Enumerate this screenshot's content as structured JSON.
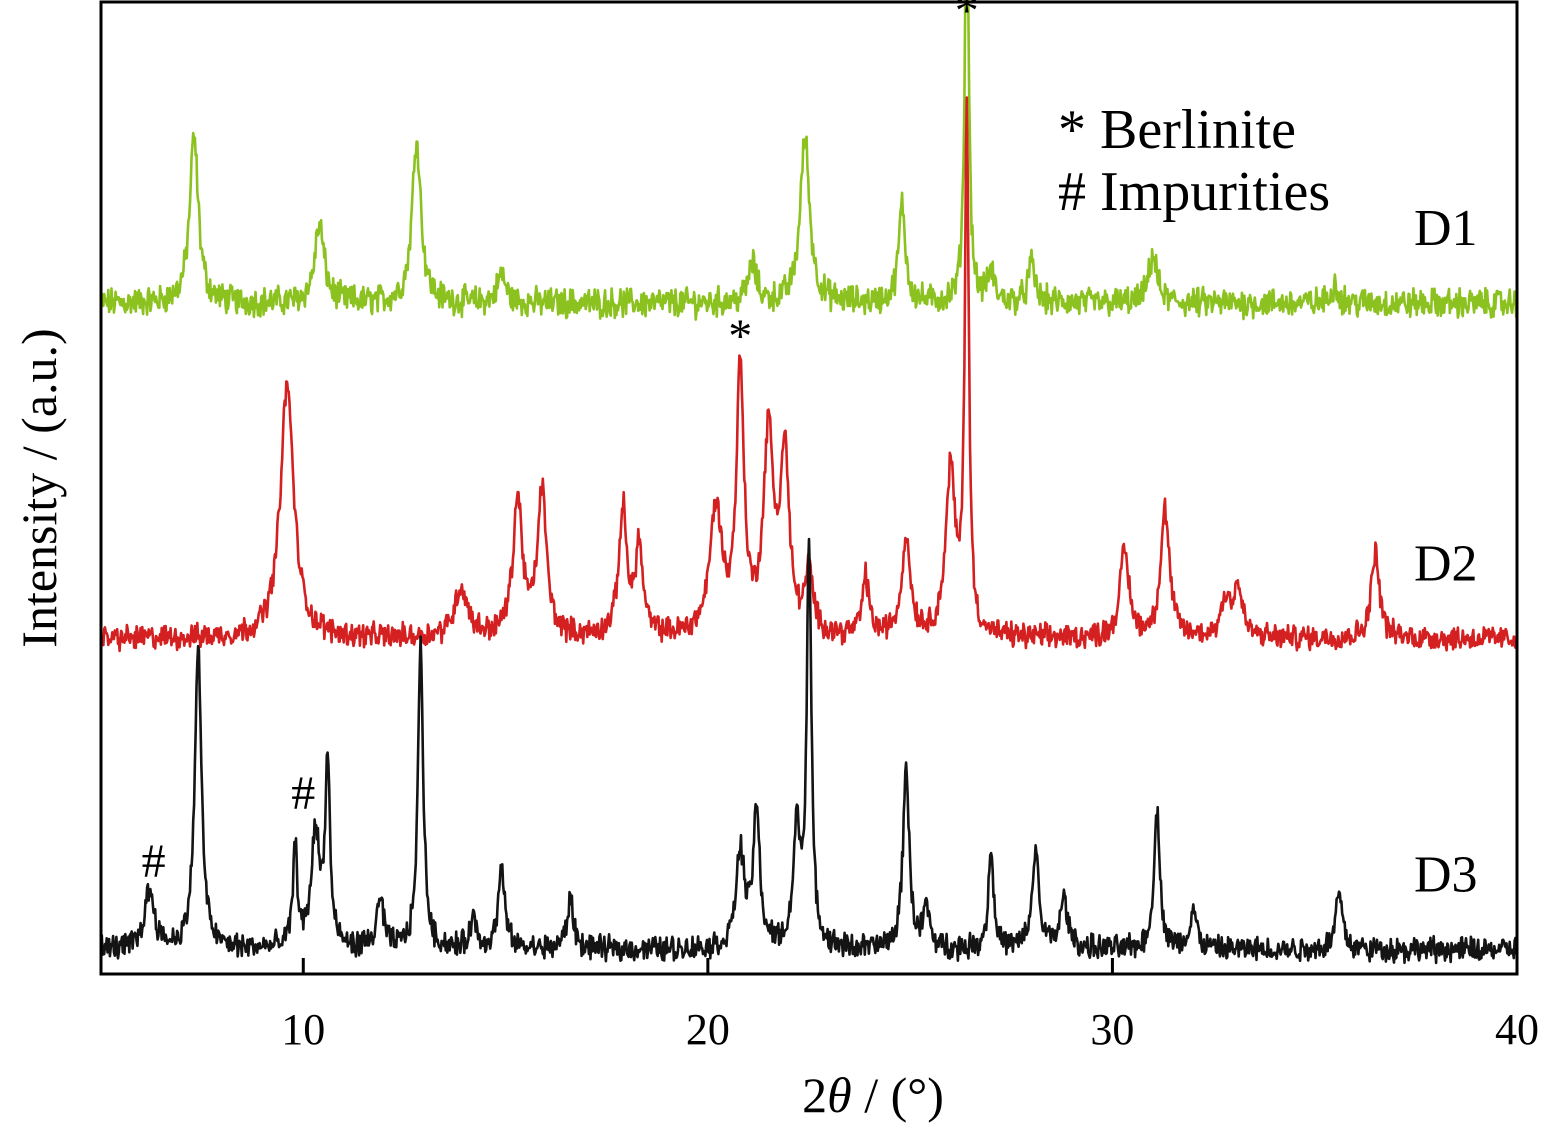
{
  "chart_data": {
    "type": "line",
    "title": "",
    "xlabel": "2θ / (°)",
    "xlabel_parts": {
      "var": "θ",
      "prefix": "2",
      "suffix": " / (°)"
    },
    "ylabel": "Intensity / (a.u.)",
    "xlim": [
      5,
      40
    ],
    "ylim": [
      0,
      100
    ],
    "x_ticks": [
      10,
      20,
      30,
      40
    ],
    "y_ticks_shown": false,
    "grid": false,
    "legend_position": "top-right",
    "legend": [
      {
        "symbol": "*",
        "label": "Berlinite"
      },
      {
        "symbol": "#",
        "label": "Impurities"
      }
    ],
    "series": [
      {
        "name": "D1",
        "color": "#8cc21f",
        "baseline": 69,
        "noise": 1.2,
        "peaks": [
          [
            7.3,
            17,
            0.13
          ],
          [
            10.4,
            8,
            0.14
          ],
          [
            12.8,
            17,
            0.13
          ],
          [
            14.9,
            3,
            0.12
          ],
          [
            21.1,
            4,
            0.12
          ],
          [
            22.4,
            17,
            0.14
          ],
          [
            24.8,
            10,
            0.1
          ],
          [
            26.4,
            43,
            0.06
          ],
          [
            27.0,
            3,
            0.1
          ],
          [
            28.0,
            4,
            0.1
          ],
          [
            31.0,
            5,
            0.12
          ],
          [
            35.5,
            2,
            0.1
          ]
        ]
      },
      {
        "name": "D2",
        "color": "#d42020",
        "baseline": 34.5,
        "noise": 1.0,
        "peaks": [
          [
            9.6,
            26,
            0.2
          ],
          [
            13.9,
            5,
            0.2
          ],
          [
            15.3,
            14,
            0.14
          ],
          [
            15.9,
            15,
            0.13
          ],
          [
            17.9,
            13,
            0.12
          ],
          [
            18.3,
            9,
            0.11
          ],
          [
            20.2,
            13,
            0.18
          ],
          [
            20.8,
            27,
            0.11
          ],
          [
            21.5,
            20,
            0.15
          ],
          [
            21.9,
            18,
            0.13
          ],
          [
            22.5,
            6,
            0.12
          ],
          [
            23.9,
            6,
            0.1
          ],
          [
            24.9,
            10,
            0.13
          ],
          [
            26.0,
            17,
            0.14
          ],
          [
            26.4,
            53,
            0.06
          ],
          [
            30.3,
            9,
            0.13
          ],
          [
            31.3,
            13,
            0.13
          ],
          [
            32.8,
            4,
            0.13
          ],
          [
            33.1,
            5,
            0.13
          ],
          [
            36.5,
            9,
            0.12
          ]
        ]
      },
      {
        "name": "D3",
        "color": "#141414",
        "baseline": 2.5,
        "noise": 1.0,
        "peaks": [
          [
            6.2,
            6,
            0.15
          ],
          [
            7.4,
            31,
            0.1
          ],
          [
            9.8,
            10,
            0.07
          ],
          [
            10.3,
            12,
            0.12
          ],
          [
            10.6,
            19,
            0.07
          ],
          [
            11.9,
            5,
            0.1
          ],
          [
            12.9,
            31,
            0.08
          ],
          [
            14.2,
            3,
            0.1
          ],
          [
            14.9,
            8,
            0.1
          ],
          [
            16.6,
            5,
            0.1
          ],
          [
            20.8,
            10,
            0.12
          ],
          [
            21.2,
            14,
            0.1
          ],
          [
            22.2,
            12,
            0.1
          ],
          [
            22.5,
            41,
            0.07
          ],
          [
            24.9,
            19,
            0.09
          ],
          [
            25.4,
            4,
            0.1
          ],
          [
            27.0,
            10,
            0.08
          ],
          [
            28.1,
            10,
            0.1
          ],
          [
            28.8,
            5,
            0.12
          ],
          [
            31.1,
            14,
            0.09
          ],
          [
            32.0,
            4,
            0.1
          ],
          [
            35.6,
            6,
            0.1
          ]
        ]
      }
    ],
    "annotations": [
      {
        "text": "*",
        "x": 26.4,
        "y": 97.5
      },
      {
        "text": "*",
        "x": 20.8,
        "y": 64
      },
      {
        "text": "#",
        "x": 6.3,
        "y": 10
      },
      {
        "text": "#",
        "x": 10.0,
        "y": 17
      }
    ]
  }
}
